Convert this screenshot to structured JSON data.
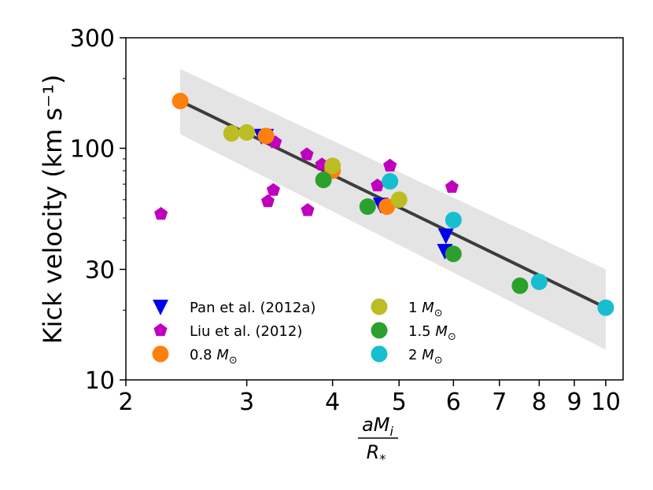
{
  "chart_data": {
    "type": "scatter",
    "title": "",
    "xlabel": {
      "numerator": "aM_i",
      "denominator": "R_*"
    },
    "ylabel": "Kick velocity (km s⁻¹)",
    "xscale": "log",
    "yscale": "log",
    "xlim": [
      2,
      10.6
    ],
    "ylim": [
      10,
      300
    ],
    "xticks": [
      2,
      3,
      4,
      5,
      6,
      7,
      8,
      9,
      10
    ],
    "yticks": [
      10,
      30,
      100,
      300
    ],
    "grid": false,
    "legend_position": "lower-left",
    "band": {
      "x": [
        2.4,
        10
      ],
      "upper": [
        220,
        30
      ],
      "lower": [
        115,
        13.5
      ],
      "color": "#e4e4e4"
    },
    "fit_line": {
      "x": [
        2.4,
        10
      ],
      "y": [
        160,
        20.5
      ],
      "color": "#3c3c3c"
    },
    "series": [
      {
        "name": "Pan et al. (2012a)",
        "marker": "triangle-down",
        "color": "#0000ee",
        "x": [
          3.15,
          3.2,
          4.7,
          5.85,
          5.83
        ],
        "y": [
          113,
          113,
          57,
          42,
          36
        ]
      },
      {
        "name": "Liu et al. (2012)",
        "marker": "pentagon",
        "color": "#bf00bf",
        "x": [
          2.25,
          3.22,
          3.28,
          3.3,
          3.67,
          3.68,
          3.86,
          4.65,
          4.85,
          5.97
        ],
        "y": [
          52,
          59,
          66,
          106,
          94,
          54,
          85,
          69,
          84,
          68
        ]
      },
      {
        "name": "0.8 M_⊙",
        "marker": "circle",
        "color": "#ff7f0e",
        "x": [
          2.4,
          3.2,
          4.0,
          4.8
        ],
        "y": [
          160,
          113,
          80,
          56
        ]
      },
      {
        "name": "1 M_⊙",
        "marker": "circle",
        "color": "#bcbd22",
        "x": [
          2.85,
          3.0,
          4.0,
          5.0
        ],
        "y": [
          116,
          117,
          84,
          60
        ]
      },
      {
        "name": "1.5 M_⊙",
        "marker": "circle",
        "color": "#2ca02c",
        "x": [
          3.88,
          4.5,
          6.0,
          7.5
        ],
        "y": [
          73,
          56,
          35,
          25.5
        ]
      },
      {
        "name": "2 M_⊙",
        "marker": "circle",
        "color": "#17becf",
        "x": [
          4.85,
          6.0,
          8.0,
          10.0
        ],
        "y": [
          72,
          49,
          26.5,
          20.5
        ]
      }
    ]
  }
}
